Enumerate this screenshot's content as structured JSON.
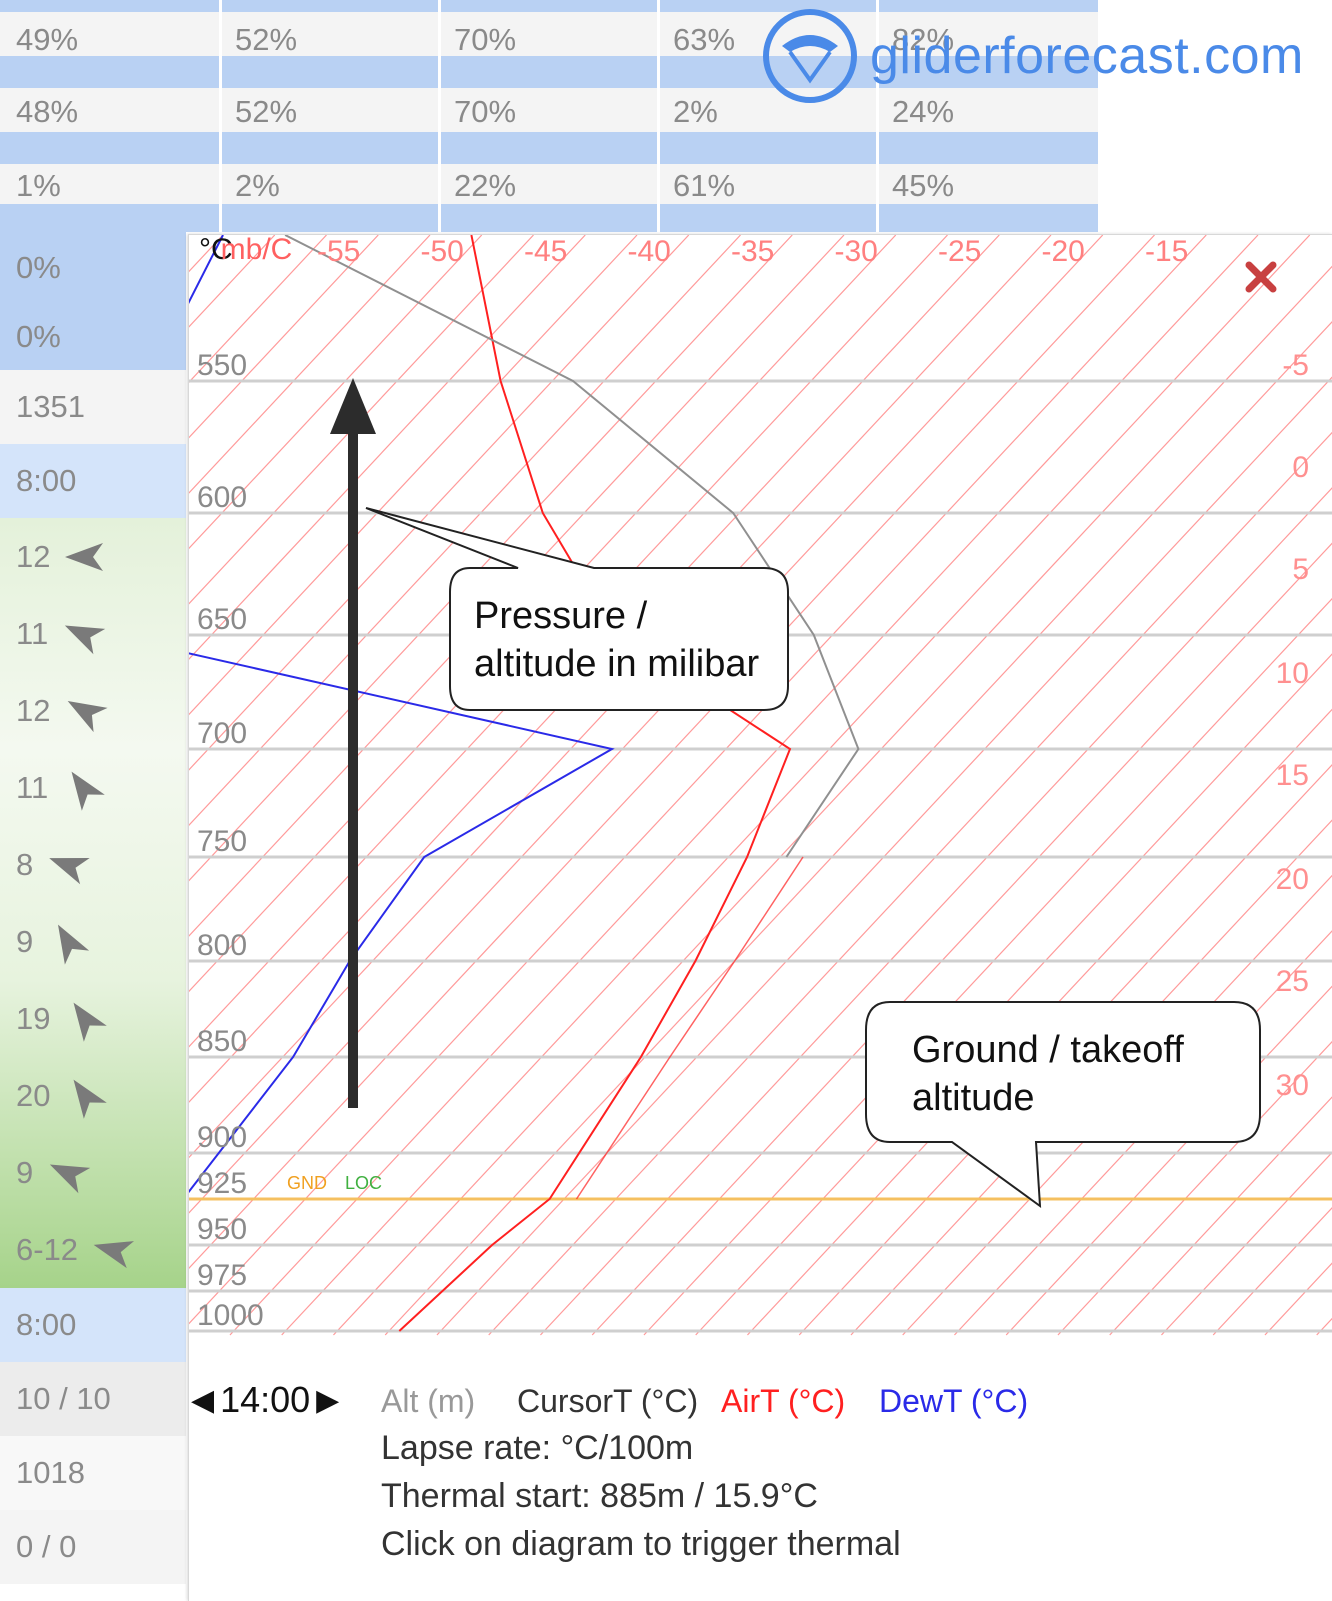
{
  "humidity_rows": [
    [
      "49%",
      "52%",
      "70%",
      "63%",
      "82%"
    ],
    [
      "48%",
      "52%",
      "70%",
      "2%",
      "24%"
    ],
    [
      "1%",
      "2%",
      "22%",
      "61%",
      "45%"
    ]
  ],
  "left_column": {
    "values_top": [
      "0%",
      "0%"
    ],
    "cloudbase": "1351",
    "time_1": "8:00",
    "wind_speeds": [
      "12",
      "11",
      "12",
      "11",
      "8",
      "9",
      "19",
      "20",
      "9",
      "6-12"
    ],
    "time_2": "8:00",
    "cloud_cover": "10 / 10",
    "pressure": "1018",
    "rain": "0 / 0"
  },
  "logo": {
    "text": "gliderforecast.com",
    "icon": "paraglider-logo-icon"
  },
  "sounding": {
    "header_unit": "mb/C",
    "header_unit_prefix": "°C",
    "close_icon": "close-icon",
    "time": "14:00",
    "footer": {
      "alt": "Alt (m)",
      "cursor": "CursorT (°C)",
      "air": "AirT (°C)",
      "dew": "DewT (°C)",
      "lapse": "Lapse rate: °C/100m",
      "thermal": "Thermal start: 885m / 15.9°C",
      "hint": "Click on diagram to trigger thermal"
    },
    "gnd_label": "GND",
    "loc_label": "LOC",
    "colors": {
      "air": "#ff2020",
      "dew": "#2a2ae8",
      "cursor": "#909090",
      "ground": "#f5c060",
      "grid": "#ff8888"
    },
    "chart_data": {
      "type": "line",
      "top_temp_ticks": [
        "-55",
        "-50",
        "-45",
        "-40",
        "-35",
        "-30",
        "-25",
        "-20",
        "-15"
      ],
      "pressure_ticks": [
        "550",
        "600",
        "650",
        "700",
        "750",
        "800",
        "850",
        "900",
        "925",
        "950",
        "975",
        "1000"
      ],
      "right_temp_ticks": [
        "-5",
        "0",
        "5",
        "10",
        "15",
        "20",
        "25",
        "30"
      ],
      "series": [
        {
          "name": "AirT (°C)",
          "points_mb_c": [
            [
              1000,
              28
            ],
            [
              950,
              28.6
            ],
            [
              925,
              29.3
            ],
            [
              850,
              27.3
            ],
            [
              800,
              25.6
            ],
            [
              750,
              23.4
            ],
            [
              700,
              20.6
            ],
            [
              650,
              7
            ],
            [
              600,
              -2
            ],
            [
              550,
              -10
            ],
            [
              500,
              -18
            ]
          ]
        },
        {
          "name": "DewT (°C)",
          "points_mb_c": [
            [
              1000,
              10
            ],
            [
              950,
              10.8
            ],
            [
              925,
              11.6
            ],
            [
              850,
              10.5
            ],
            [
              800,
              8.9
            ],
            [
              750,
              7.8
            ],
            [
              700,
              12
            ],
            [
              650,
              -17.5
            ],
            [
              600,
              -24
            ],
            [
              550,
              -27
            ],
            [
              500,
              -30
            ]
          ]
        },
        {
          "name": "CursorT (°C)",
          "points_mb_c": [
            [
              750,
              25.3
            ],
            [
              700,
              23.9
            ],
            [
              650,
              16.6
            ],
            [
              600,
              7.2
            ],
            [
              550,
              -6.5
            ],
            [
              500,
              -27
            ]
          ]
        }
      ]
    }
  },
  "callouts": {
    "pressure": {
      "line1": "Pressure /",
      "line2": "altitude in milibar"
    },
    "ground": {
      "line1": "Ground / takeoff",
      "line2": "altitude"
    }
  }
}
